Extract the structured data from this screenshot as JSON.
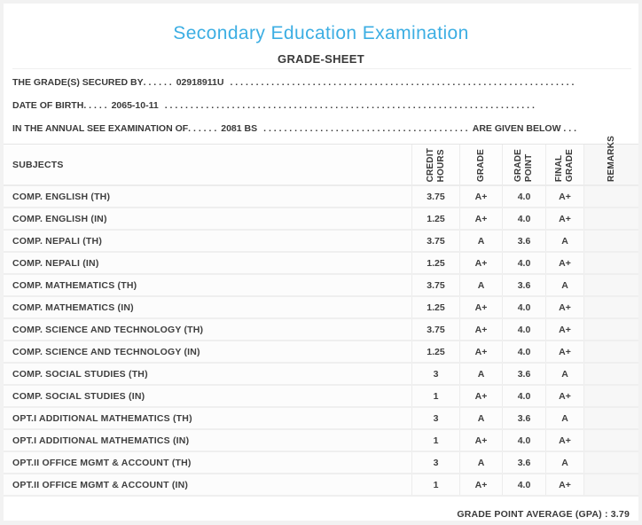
{
  "colors": {
    "title_accent": "#3caee3",
    "body_text": "#3a3a3a",
    "row_separator": "#efefef",
    "remarks_column_bg": "#f7f7f7"
  },
  "header": {
    "title": "Secondary Education Examination",
    "subtitle": "GRADE-SHEET"
  },
  "info_lines": [
    {
      "label": "THE GRADE(S) SECURED BY",
      "dots_before": ". . . . . .",
      "value": "02918911U",
      "dots_after": ". . . . . . . . . . . . . . . . . . . . . . . . . . . . . . . . . . . . . . . . . . . . . . . . . . . . . . . . . . . . . . . . . . . . . . . .",
      "suffix": ""
    },
    {
      "label": "DATE OF BIRTH",
      "dots_before": ". . . . .",
      "value": "2065-10-11",
      "dots_after": ". . . . . . . . . . . . . . . . . . . . . . . . . . . . . . . . . . . . . . . . . . . . . . . . . . . . . . . . . . . . . . . . . . . . . . . .",
      "suffix": ""
    },
    {
      "label": "IN THE ANNUAL SEE EXAMINATION OF",
      "dots_before": ". . . . . .",
      "value": "2081 BS",
      "dots_after": ". . . . . . . . . . . . . . . . . . . . . . . . . . . . . . . . . . . . . . . . . . . . . . . . . . . . . . . . . . . . . . . . . . . . . . . .",
      "suffix": "ARE GIVEN BELOW . . ."
    }
  ],
  "table": {
    "subjects_header": "SUBJECTS",
    "columns": [
      "CREDIT\nHOURS",
      "GRADE",
      "GRADE\nPOINT",
      "FINAL\nGRADE",
      "REMARKS"
    ],
    "rows": [
      {
        "subject": "COMP. ENGLISH (TH)",
        "credit_hours": "3.75",
        "grade": "A+",
        "grade_point": "4.0",
        "final_grade": "A+",
        "remarks": ""
      },
      {
        "subject": "COMP. ENGLISH (IN)",
        "credit_hours": "1.25",
        "grade": "A+",
        "grade_point": "4.0",
        "final_grade": "A+",
        "remarks": ""
      },
      {
        "subject": "COMP. NEPALI (TH)",
        "credit_hours": "3.75",
        "grade": "A",
        "grade_point": "3.6",
        "final_grade": "A",
        "remarks": ""
      },
      {
        "subject": "COMP. NEPALI (IN)",
        "credit_hours": "1.25",
        "grade": "A+",
        "grade_point": "4.0",
        "final_grade": "A+",
        "remarks": ""
      },
      {
        "subject": "COMP. MATHEMATICS (TH)",
        "credit_hours": "3.75",
        "grade": "A",
        "grade_point": "3.6",
        "final_grade": "A",
        "remarks": ""
      },
      {
        "subject": "COMP. MATHEMATICS (IN)",
        "credit_hours": "1.25",
        "grade": "A+",
        "grade_point": "4.0",
        "final_grade": "A+",
        "remarks": ""
      },
      {
        "subject": "COMP. SCIENCE AND TECHNOLOGY (TH)",
        "credit_hours": "3.75",
        "grade": "A+",
        "grade_point": "4.0",
        "final_grade": "A+",
        "remarks": ""
      },
      {
        "subject": "COMP. SCIENCE AND TECHNOLOGY (IN)",
        "credit_hours": "1.25",
        "grade": "A+",
        "grade_point": "4.0",
        "final_grade": "A+",
        "remarks": ""
      },
      {
        "subject": "COMP. SOCIAL STUDIES (TH)",
        "credit_hours": "3",
        "grade": "A",
        "grade_point": "3.6",
        "final_grade": "A",
        "remarks": ""
      },
      {
        "subject": "COMP. SOCIAL STUDIES (IN)",
        "credit_hours": "1",
        "grade": "A+",
        "grade_point": "4.0",
        "final_grade": "A+",
        "remarks": ""
      },
      {
        "subject": "OPT.I ADDITIONAL MATHEMATICS (TH)",
        "credit_hours": "3",
        "grade": "A",
        "grade_point": "3.6",
        "final_grade": "A",
        "remarks": ""
      },
      {
        "subject": "OPT.I ADDITIONAL MATHEMATICS (IN)",
        "credit_hours": "1",
        "grade": "A+",
        "grade_point": "4.0",
        "final_grade": "A+",
        "remarks": ""
      },
      {
        "subject": "OPT.II OFFICE MGMT & ACCOUNT (TH)",
        "credit_hours": "3",
        "grade": "A",
        "grade_point": "3.6",
        "final_grade": "A",
        "remarks": ""
      },
      {
        "subject": "OPT.II OFFICE MGMT & ACCOUNT (IN)",
        "credit_hours": "1",
        "grade": "A+",
        "grade_point": "4.0",
        "final_grade": "A+",
        "remarks": ""
      }
    ]
  },
  "footer": {
    "gpa": "GRADE POINT AVERAGE (GPA) : 3.79"
  }
}
